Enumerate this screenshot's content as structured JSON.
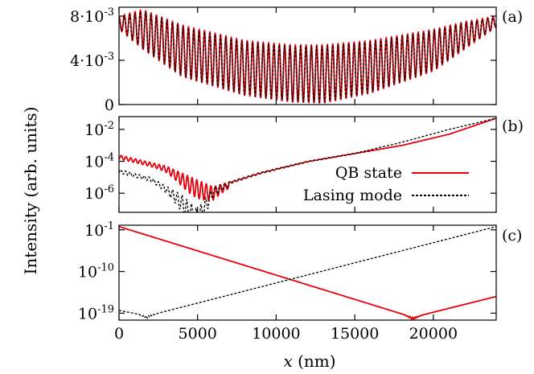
{
  "chart_data": [
    {
      "panel": "(a)",
      "type": "line",
      "scale_y": "linear",
      "xlim": [
        0,
        24000
      ],
      "ylim": [
        0,
        0.0088
      ],
      "yticks": [
        {
          "value": 0,
          "base": "0",
          "exp": ""
        },
        {
          "value": 0.004,
          "base": "4·10",
          "exp": "-3"
        },
        {
          "value": 0.008,
          "base": "8·10",
          "exp": "-3"
        }
      ],
      "series": [
        {
          "name": "QB state",
          "color": "#e8000b",
          "style": "solid",
          "envelope_x": [
            0,
            1500,
            4000,
            8000,
            11000,
            13000,
            16000,
            20000,
            22000,
            24000
          ],
          "envelope_max": [
            0.008,
            0.0086,
            0.0072,
            0.0058,
            0.0054,
            0.0054,
            0.0058,
            0.0068,
            0.0075,
            0.008
          ],
          "envelope_min": [
            0.0068,
            0.005,
            0.0025,
            0.0008,
            0.0002,
            0.0001,
            0.001,
            0.003,
            0.005,
            0.007
          ]
        },
        {
          "name": "Lasing mode",
          "color": "#000000",
          "style": "dashed",
          "envelope_x": [
            0,
            1500,
            4000,
            8000,
            11000,
            13000,
            16000,
            20000,
            22000,
            24000
          ],
          "envelope_max": [
            0.0078,
            0.0085,
            0.0071,
            0.0057,
            0.0053,
            0.0053,
            0.0057,
            0.0067,
            0.0074,
            0.0079
          ],
          "envelope_min": [
            0.0069,
            0.0051,
            0.0026,
            0.0009,
            0.0003,
            0.0002,
            0.0011,
            0.0031,
            0.0051,
            0.0071
          ]
        }
      ]
    },
    {
      "panel": "(b)",
      "type": "line",
      "scale_y": "log",
      "xlim": [
        0,
        24000
      ],
      "ylim_log10": [
        -7.2,
        -1.2
      ],
      "yticks": [
        {
          "value_log10": -2,
          "base": "10",
          "exp": "-2"
        },
        {
          "value_log10": -4,
          "base": "10",
          "exp": "-4"
        },
        {
          "value_log10": -6,
          "base": "10",
          "exp": "-6"
        }
      ],
      "series": [
        {
          "name": "QB state",
          "color": "#e8000b",
          "style": "solid",
          "x": [
            0,
            3000,
            6000,
            9000,
            12000,
            15000,
            18000,
            21000,
            24000
          ],
          "log10_y": [
            -3.6,
            -4.3,
            -5.6,
            -4.7,
            -4.0,
            -3.5,
            -3.0,
            -2.3,
            -1.3
          ]
        },
        {
          "name": "Lasing mode",
          "color": "#000000",
          "style": "dashed",
          "x": [
            0,
            2000,
            4000,
            5000,
            6000,
            9000,
            12000,
            15000,
            18000,
            21000,
            24000
          ],
          "log10_y": [
            -4.5,
            -5.0,
            -6.1,
            -7.0,
            -5.6,
            -4.7,
            -4.0,
            -3.5,
            -2.8,
            -2.0,
            -1.3
          ]
        }
      ]
    },
    {
      "panel": "(c)",
      "type": "line",
      "scale_y": "log",
      "xlim": [
        0,
        24000
      ],
      "ylim_log10": [
        -20.5,
        0
      ],
      "yticks": [
        {
          "value_log10": -1,
          "base": "10",
          "exp": "-1"
        },
        {
          "value_log10": -10,
          "base": "10",
          "exp": "-10"
        },
        {
          "value_log10": -19,
          "base": "10",
          "exp": "-19"
        }
      ],
      "series": [
        {
          "name": "QB state",
          "color": "#e8000b",
          "style": "solid",
          "x": [
            0,
            18700,
            24000
          ],
          "log10_y": [
            -0.3,
            -19.9,
            -15.4
          ]
        },
        {
          "name": "Lasing mode",
          "color": "#000000",
          "style": "dashed",
          "x": [
            0,
            1800,
            24000
          ],
          "log10_y": [
            -18.4,
            -19.6,
            -0.3
          ]
        }
      ]
    }
  ],
  "xticks": [
    "0",
    "5000",
    "10000",
    "15000",
    "20000"
  ],
  "xtick_values": [
    0,
    5000,
    10000,
    15000,
    20000
  ],
  "xlabel_var": "x",
  "xlabel_unit": " (nm)",
  "ylabel": "Intensity (arb. units)",
  "legend": [
    {
      "label": "QB state",
      "color": "#e8000b",
      "style": "solid"
    },
    {
      "label": "Lasing mode",
      "color": "#000000",
      "style": "dashed"
    }
  ]
}
